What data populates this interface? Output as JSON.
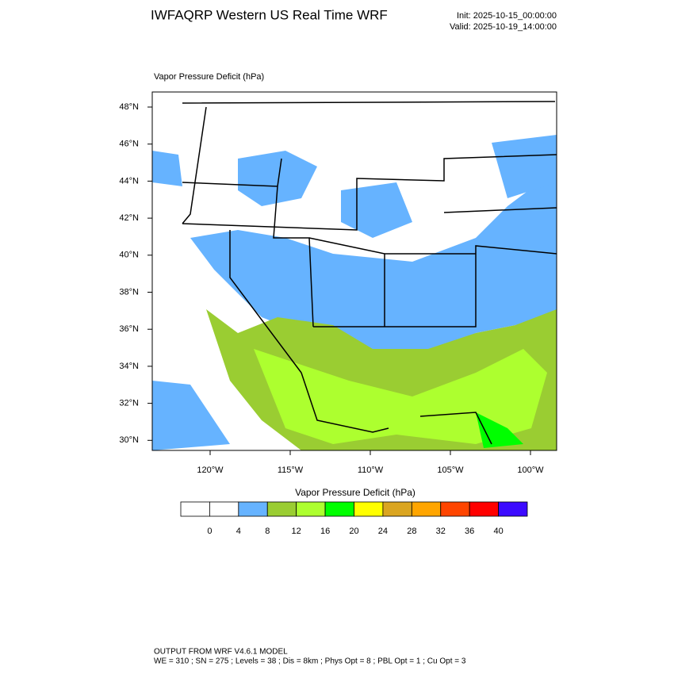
{
  "header": {
    "title": "IWFAQRP Western US Real Time WRF",
    "init": "Init: 2025-10-15_00:00:00",
    "valid": "Valid: 2025-10-19_14:00:00"
  },
  "map": {
    "title": "Vapor Pressure Deficit   (hPa)",
    "lat_labels": [
      "48°N",
      "46°N",
      "44°N",
      "42°N",
      "40°N",
      "38°N",
      "36°N",
      "34°N",
      "32°N",
      "30°N"
    ],
    "lon_labels": [
      "120°W",
      "115°W",
      "110°W",
      "105°W",
      "100°W"
    ]
  },
  "colorbar": {
    "title": "Vapor Pressure Deficit  (hPa)",
    "colors": [
      "#ffffff",
      "#ffffff",
      "#66b3ff",
      "#9acd32",
      "#adff2f",
      "#00ff00",
      "#ffff00",
      "#daa520",
      "#ffa500",
      "#ff4500",
      "#ff0000",
      "#3c0aff"
    ],
    "labels": [
      "0",
      "4",
      "8",
      "12",
      "16",
      "20",
      "24",
      "28",
      "32",
      "36",
      "40"
    ]
  },
  "footer": {
    "line1": "OUTPUT FROM WRF V4.6.1 MODEL",
    "line2": "WE = 310 ; SN = 275 ; Levels = 38 ; Dis = 8km ; Phys Opt = 8 ; PBL Opt = 1 ; Cu Opt = 3"
  }
}
